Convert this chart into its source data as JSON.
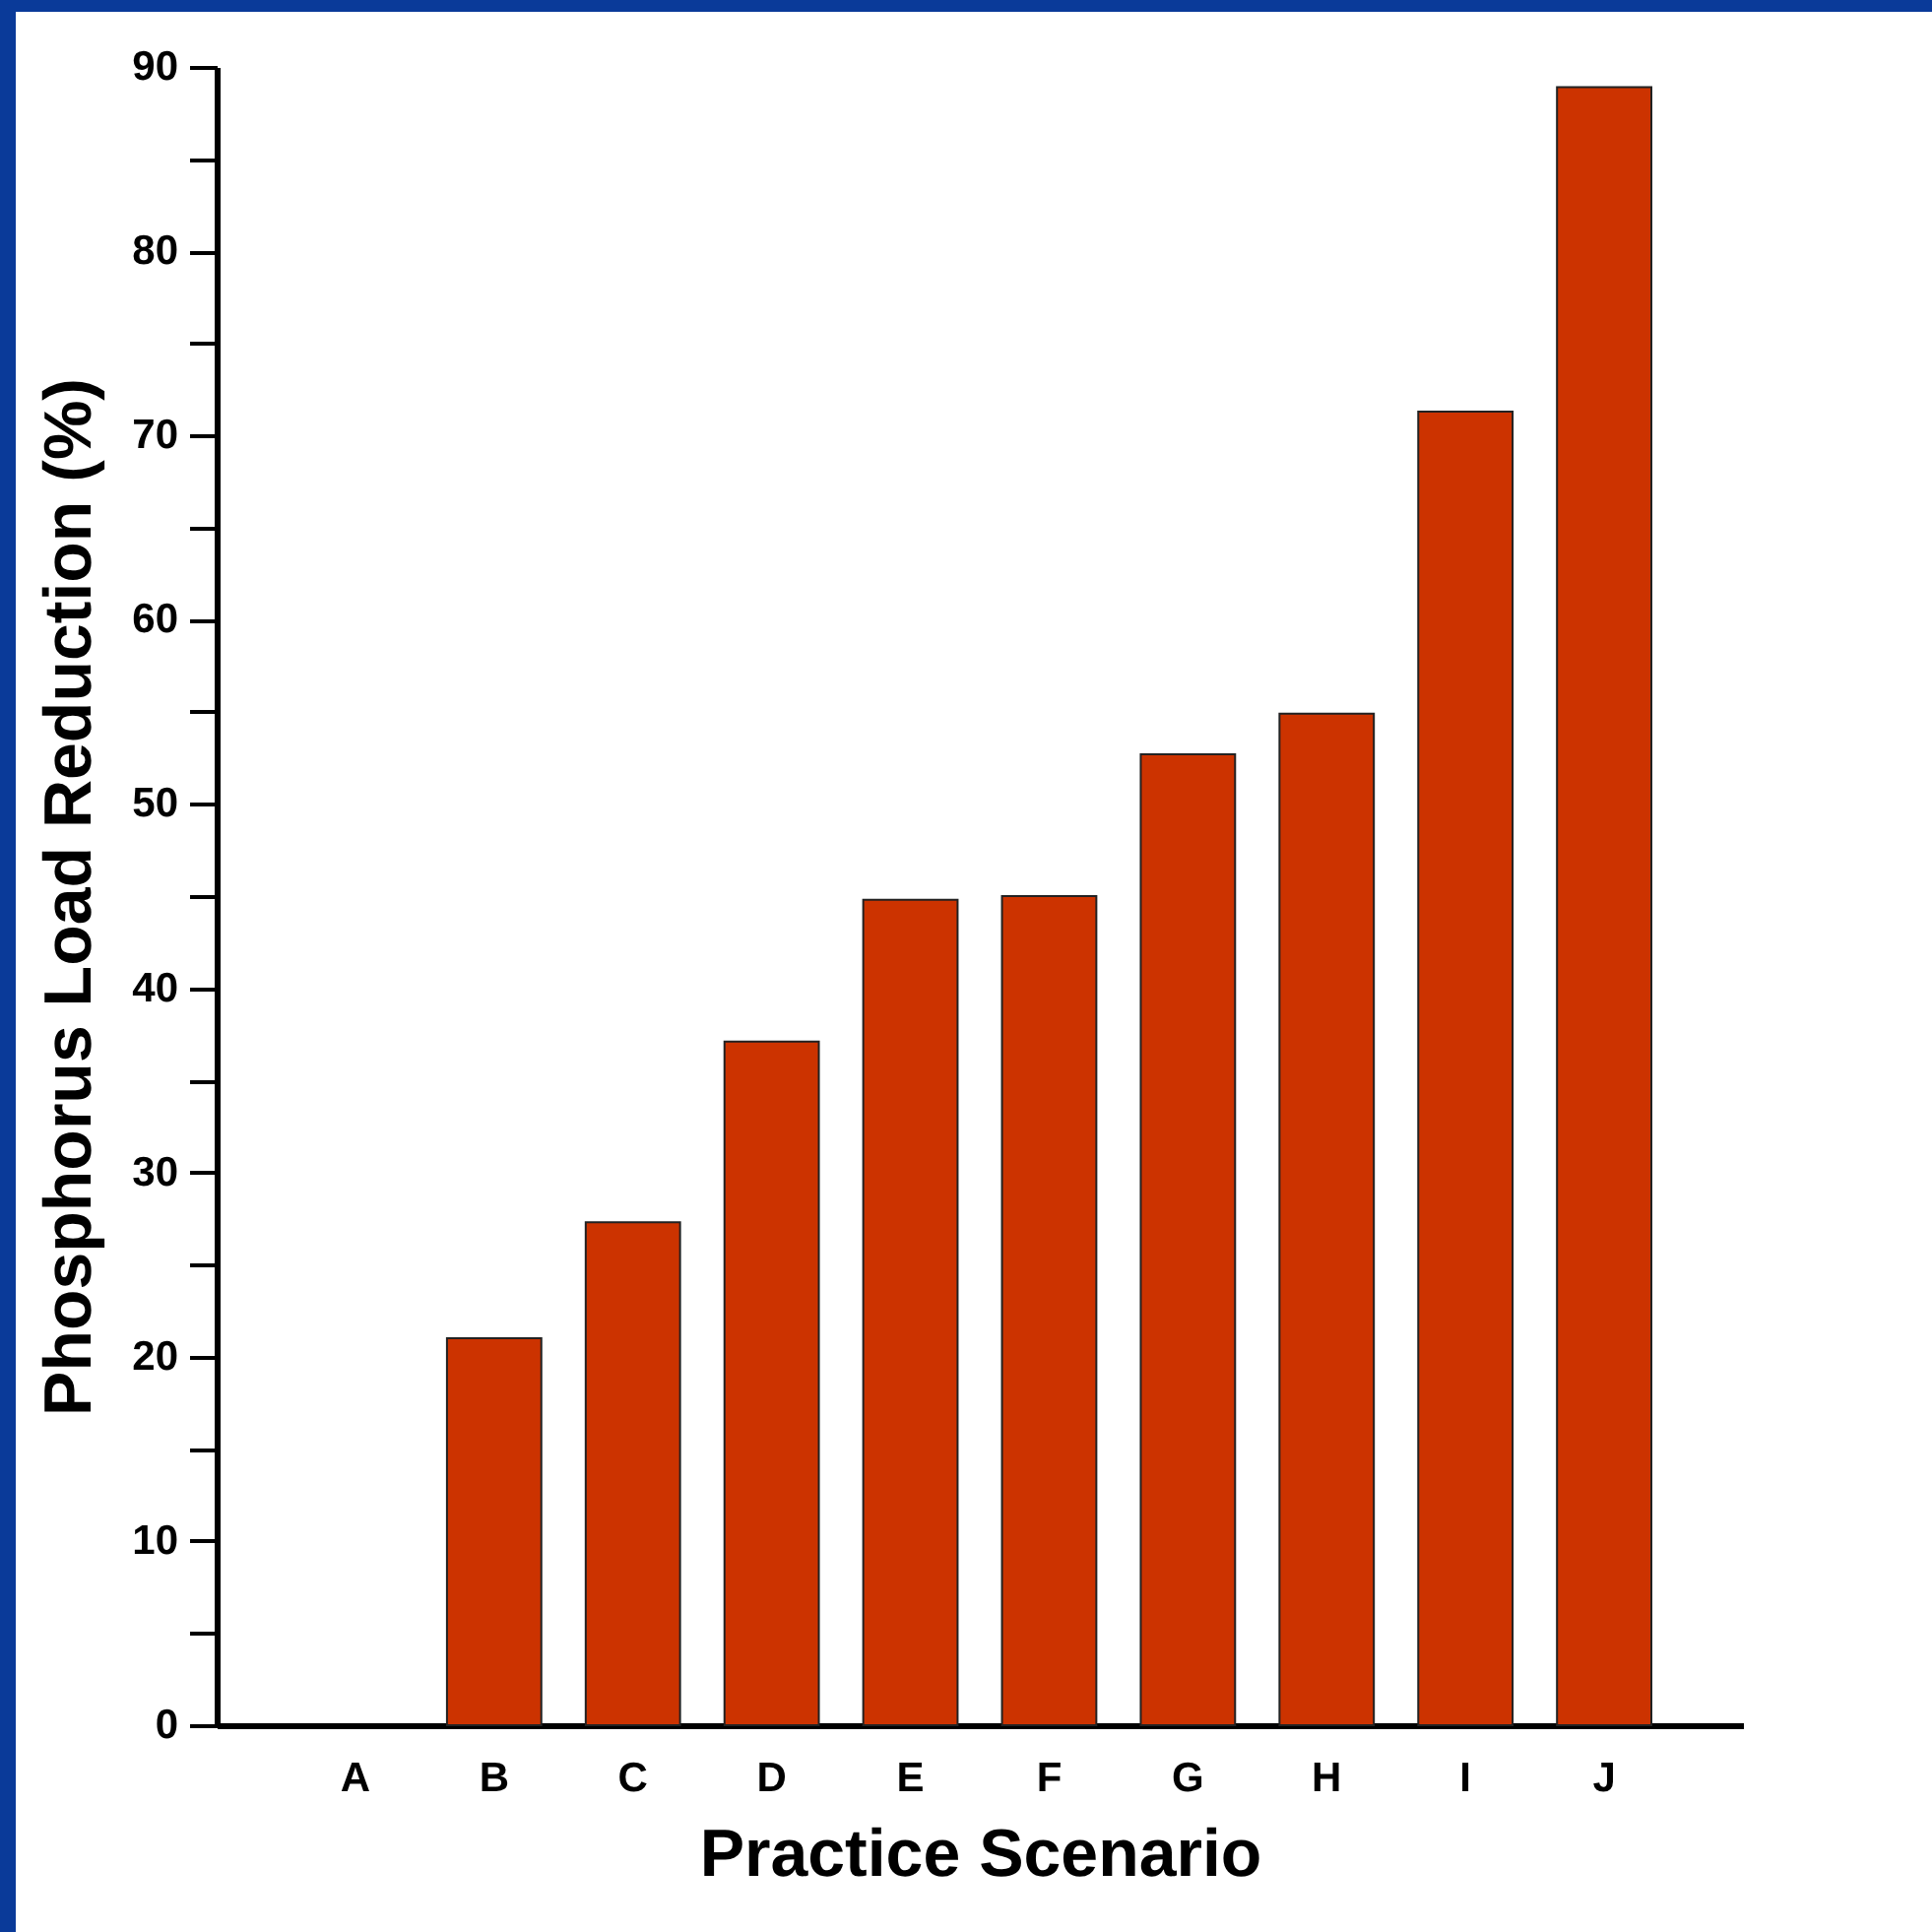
{
  "chart_data": {
    "type": "bar",
    "xlabel": "Practice Scenario",
    "ylabel": "Phosphorus Load Reduction (%)",
    "categories": [
      "A",
      "B",
      "C",
      "D",
      "E",
      "F",
      "G",
      "H",
      "I",
      "J"
    ],
    "values": [
      0,
      21,
      27.3,
      37.1,
      44.8,
      45,
      52.7,
      54.9,
      71.3,
      88.9
    ],
    "color": "#cc3300",
    "ylim": [
      0,
      90
    ],
    "yticks": [
      0,
      {
        "value": 5,
        "label": null
      },
      10,
      {
        "value": 15,
        "label": null
      },
      20,
      {
        "value": 25,
        "label": null
      },
      30,
      {
        "value": 35,
        "label": null
      },
      40,
      {
        "value": 45,
        "label": null
      },
      50,
      {
        "value": 55,
        "label": null
      },
      60,
      {
        "value": 65,
        "label": null
      },
      70,
      {
        "value": 75,
        "label": null
      },
      80,
      {
        "value": 85,
        "label": null
      },
      90
    ],
    "grid": false
  }
}
